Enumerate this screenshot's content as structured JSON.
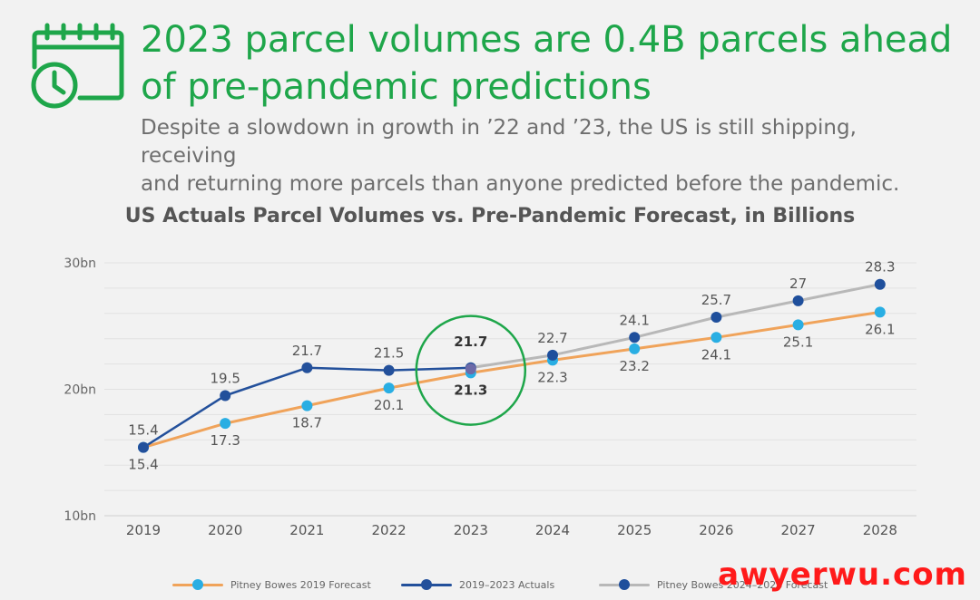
{
  "header": {
    "headline_line1": "2023 parcel volumes are 0.4B parcels ahead",
    "headline_line2": "of pre-pandemic predictions",
    "subhead_line1": "Despite a slowdown in growth in ’22 and ’23, the US is still shipping, receiving",
    "subhead_line2": "and returning more parcels than anyone predicted before the pandemic.",
    "icon": "calendar-clock-icon"
  },
  "colors": {
    "headline": "#1ea64a",
    "forecast_line": "#f0a35a",
    "forecast_dot": "#29aee3",
    "actuals": "#23509b",
    "pb2024_line": "#b8b8b8",
    "pb2024_dot": "#1f4f9c",
    "highlight_circle": "#1ea64a",
    "watermark": "#ff1a1a"
  },
  "chart_data": {
    "type": "line",
    "title": "US Actuals Parcel Volumes vs. Pre-Pandemic Forecast, in Billions",
    "xlabel": "",
    "ylabel": "",
    "categories": [
      "2019",
      "2020",
      "2021",
      "2022",
      "2023",
      "2024",
      "2025",
      "2026",
      "2027",
      "2028"
    ],
    "ylim": [
      10,
      30
    ],
    "yticks": [
      {
        "value": 10,
        "label": "10bn"
      },
      {
        "value": 20,
        "label": "20bn"
      },
      {
        "value": 30,
        "label": "30bn"
      }
    ],
    "grid": true,
    "legend_position": "bottom",
    "series": [
      {
        "key": "forecast2019",
        "name": "Pitney Bowes 2019 Forecast",
        "values": [
          15.4,
          17.3,
          18.7,
          20.1,
          21.3,
          22.3,
          23.2,
          24.1,
          25.1,
          26.1
        ],
        "labels": [
          "15.4",
          "17.3",
          "18.7",
          "20.1",
          "21.3",
          "22.3",
          "23.2",
          "24.1",
          "25.1",
          "26.1"
        ]
      },
      {
        "key": "actuals",
        "name": "2019–2023 Actuals",
        "values": [
          15.4,
          19.5,
          21.7,
          21.5,
          21.7,
          null,
          null,
          null,
          null,
          null
        ],
        "labels": [
          "15.4",
          "19.5",
          "21.7",
          "21.5",
          "21.7",
          null,
          null,
          null,
          null,
          null
        ]
      },
      {
        "key": "pb2024",
        "name": "Pitney Bowes 2024–2028 Forecast",
        "values": [
          null,
          null,
          null,
          null,
          21.7,
          22.7,
          24.1,
          25.7,
          27,
          28.3
        ],
        "labels": [
          null,
          null,
          null,
          null,
          null,
          "22.7",
          "24.1",
          "25.7",
          "27",
          "28.3"
        ]
      }
    ],
    "annotations": [
      {
        "type": "circle",
        "category": "2023",
        "note": "highlighted gap 21.7 vs 21.3"
      }
    ]
  },
  "watermark": "awyerwu.com"
}
